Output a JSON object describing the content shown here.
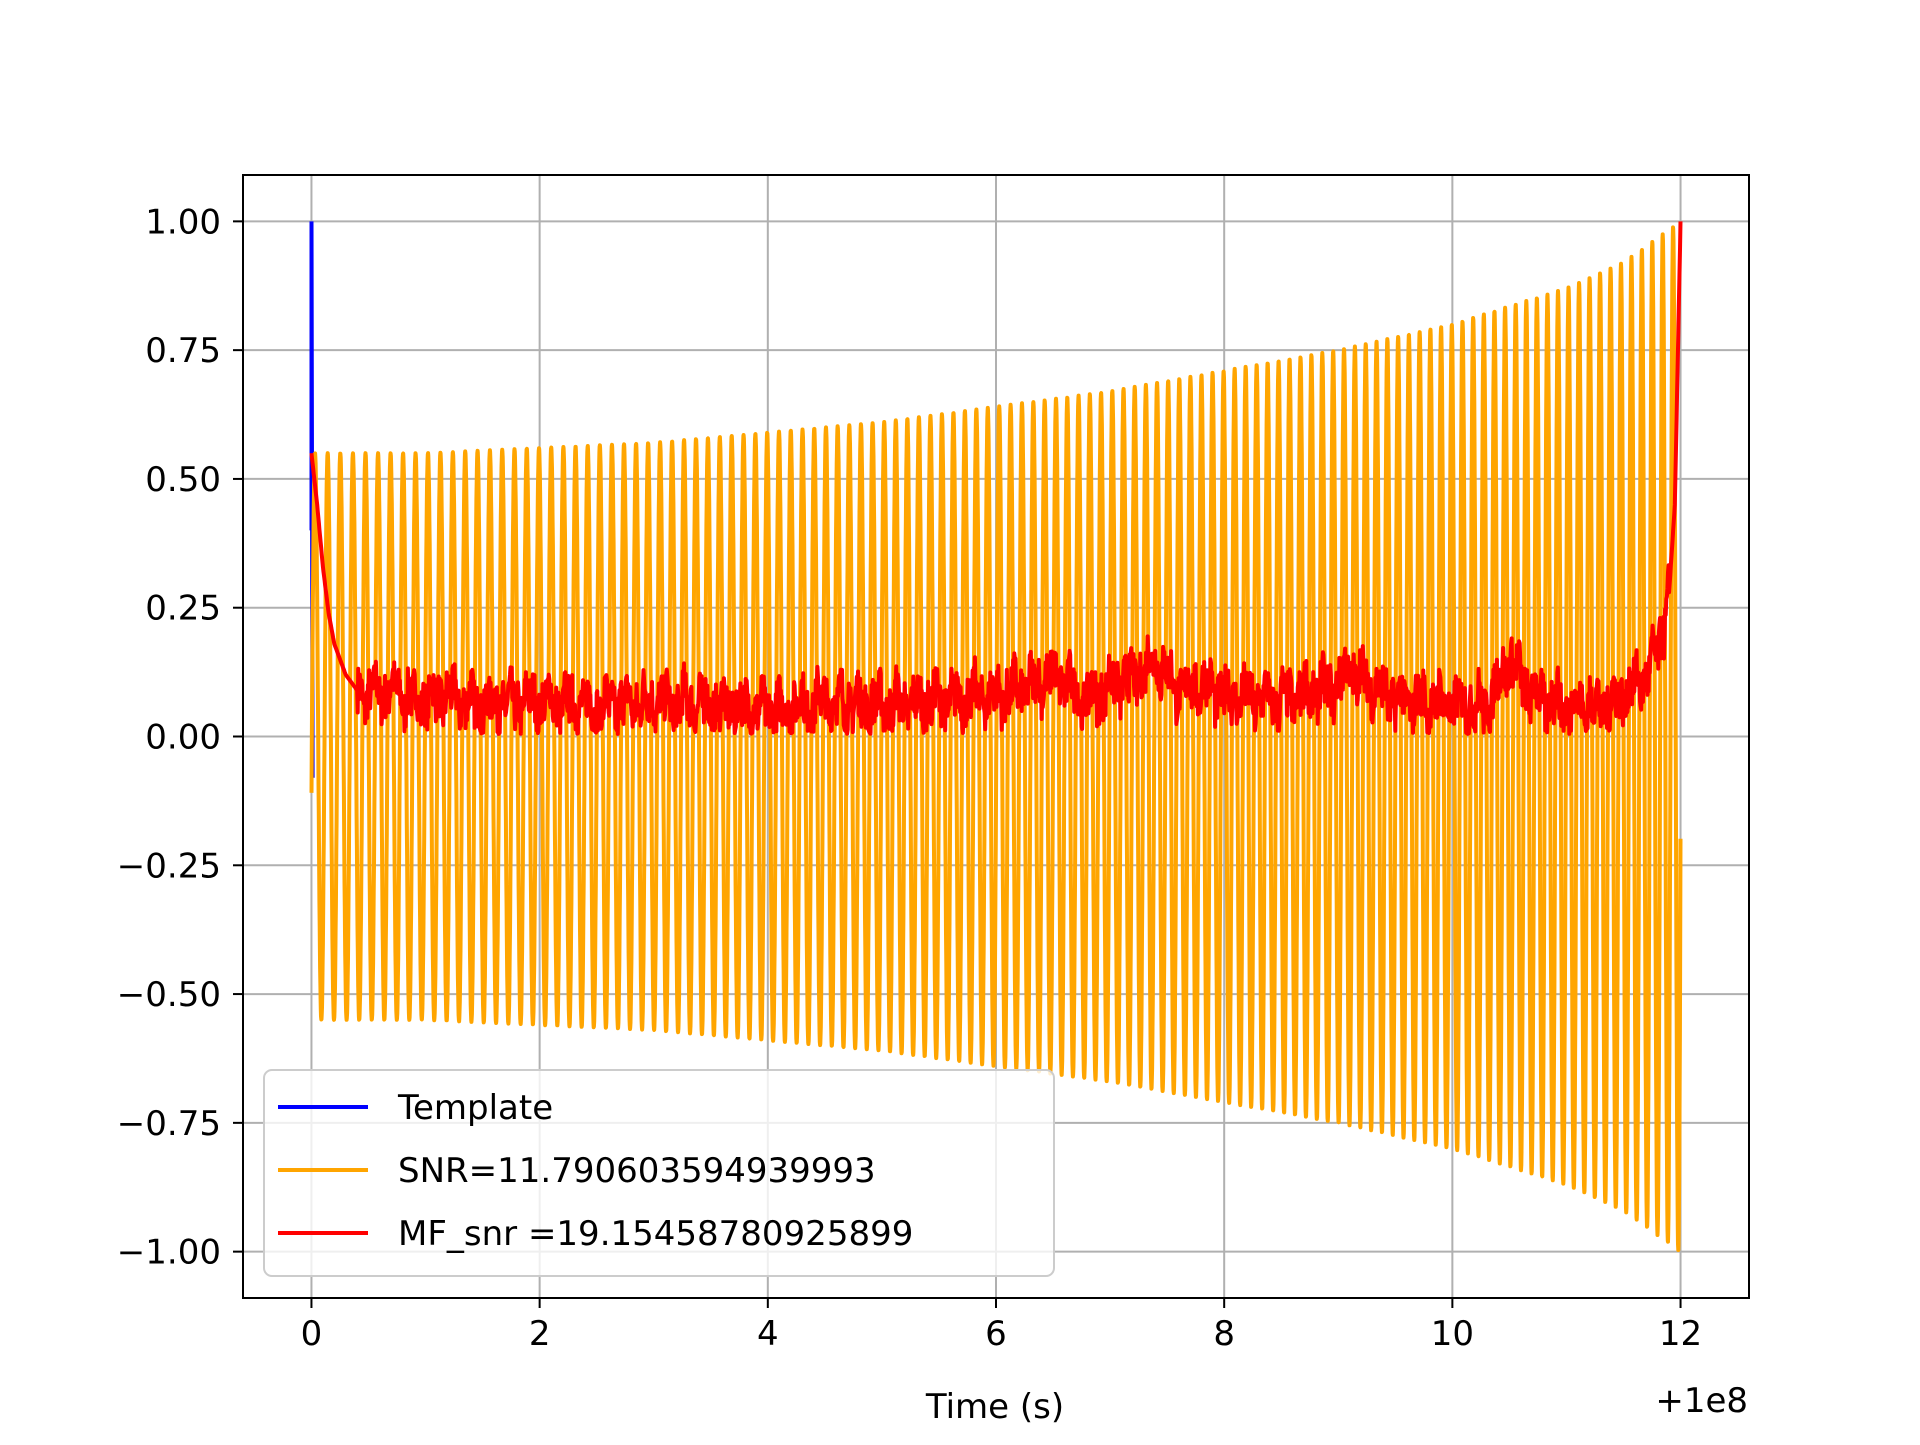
{
  "chart_data": {
    "type": "line",
    "title": "",
    "xlabel": "Time (s)",
    "ylabel": "",
    "x_offset_label": "+1e8",
    "xlim": [
      -0.6,
      12.6
    ],
    "ylim": [
      -1.09,
      1.09
    ],
    "xticks": [
      0,
      2,
      4,
      6,
      8,
      10,
      12
    ],
    "xtick_labels": [
      "0",
      "2",
      "4",
      "6",
      "8",
      "10",
      "12"
    ],
    "yticks": [
      1.0,
      0.75,
      0.5,
      0.25,
      0.0,
      -0.25,
      -0.5,
      -0.75,
      -1.0
    ],
    "ytick_labels": [
      "1.00",
      "0.75",
      "0.50",
      "0.25",
      "0.00",
      "−0.25",
      "−0.50",
      "−0.75",
      "−1.00"
    ],
    "grid": true,
    "legend_position": "lower-left",
    "series": [
      {
        "name": "Template",
        "color": "#0000ff",
        "description_points": {
          "x": [
            0.0,
            0.0,
            0.01
          ],
          "y": [
            0.4,
            1.0,
            -0.08
          ]
        }
      },
      {
        "name": "SNR=11.790603594939993",
        "color": "#ffa500",
        "envelope": {
          "x": [
            0.0,
            1.0,
            2.0,
            3.0,
            4.0,
            5.0,
            6.0,
            7.0,
            8.0,
            9.0,
            10.0,
            11.0,
            11.5,
            12.0
          ],
          "amplitude": [
            0.55,
            0.55,
            0.56,
            0.57,
            0.59,
            0.61,
            0.64,
            0.67,
            0.71,
            0.75,
            0.8,
            0.87,
            0.92,
            1.0
          ]
        },
        "cycles_total": 120
      },
      {
        "name": "MF_snr =19.15458780925899",
        "color": "#ff0000",
        "x": [
          0.0,
          0.05,
          0.1,
          0.15,
          0.2,
          0.3,
          0.4,
          0.5,
          0.7,
          0.9,
          1.2,
          1.5,
          2.0,
          2.5,
          3.0,
          3.5,
          4.0,
          4.5,
          5.0,
          5.5,
          6.0,
          6.2,
          6.5,
          6.8,
          7.0,
          7.2,
          7.4,
          7.6,
          7.8,
          8.0,
          8.5,
          9.0,
          9.1,
          9.5,
          10.0,
          10.3,
          10.5,
          10.7,
          11.0,
          11.3,
          11.5,
          11.7,
          11.8,
          11.9,
          11.95,
          12.0
        ],
        "y": [
          0.55,
          0.45,
          0.33,
          0.24,
          0.18,
          0.12,
          0.09,
          0.08,
          0.09,
          0.07,
          0.08,
          0.06,
          0.07,
          0.06,
          0.07,
          0.06,
          0.05,
          0.07,
          0.06,
          0.07,
          0.08,
          0.09,
          0.12,
          0.07,
          0.1,
          0.11,
          0.15,
          0.09,
          0.1,
          0.08,
          0.07,
          0.1,
          0.13,
          0.07,
          0.06,
          0.06,
          0.15,
          0.08,
          0.06,
          0.06,
          0.08,
          0.12,
          0.16,
          0.28,
          0.45,
          1.0
        ]
      }
    ]
  }
}
